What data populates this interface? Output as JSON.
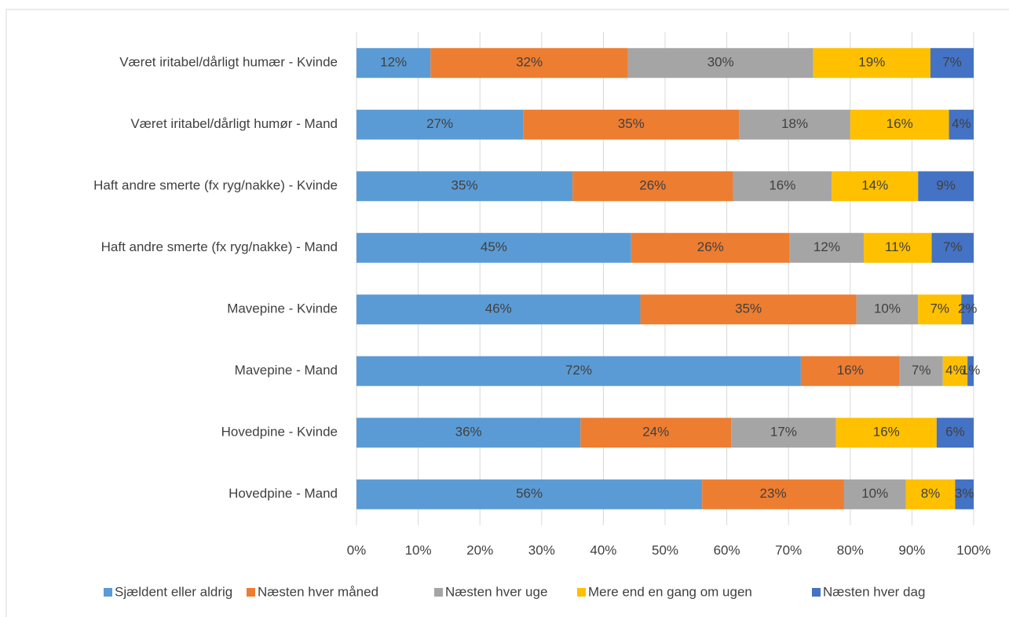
{
  "chart_data": {
    "type": "stacked-bar-horizontal",
    "categories": [
      "Været iritabel/dårligt humær - Kvinde",
      "Været iritabel/dårligt humør - Mand",
      "Haft andre smerte (fx ryg/nakke) - Kvinde",
      "Haft andre smerte (fx ryg/nakke) - Mand",
      "Mavepine - Kvinde",
      "Mavepine - Mand",
      "Hovedpine - Kvinde",
      "Hovedpine - Mand"
    ],
    "series": [
      {
        "name": "Sjældent eller aldrig",
        "color": "#5b9bd5",
        "values": [
          12,
          27,
          35,
          44.5,
          46,
          72,
          36.3,
          56
        ],
        "value_labels": [
          "12%",
          "27%",
          "35%",
          "45%",
          "46%",
          "72%",
          "36%",
          "56%"
        ]
      },
      {
        "name": "Næsten hver måned",
        "color": "#ed7d31",
        "values": [
          32,
          35,
          26,
          25.7,
          35,
          16,
          24.4,
          23
        ],
        "value_labels": [
          "32%",
          "35%",
          "26%",
          "26%",
          "35%",
          "16%",
          "24%",
          "23%"
        ]
      },
      {
        "name": "Næsten hver uge",
        "color": "#a5a5a5",
        "values": [
          30,
          18,
          16,
          12,
          10,
          7,
          17,
          10
        ],
        "value_labels": [
          "30%",
          "18%",
          "16%",
          "12%",
          "10%",
          "7%",
          "17%",
          "10%"
        ]
      },
      {
        "name": "Mere end en gang om ugen",
        "color": "#ffc000",
        "values": [
          19,
          16,
          14,
          11,
          7,
          4,
          16.3,
          8
        ],
        "value_labels": [
          "19%",
          "16%",
          "14%",
          "11%",
          "7%",
          "4%",
          "16%",
          "8%"
        ]
      },
      {
        "name": "Næsten hver dag",
        "color": "#4472c4",
        "values": [
          7,
          4,
          9,
          6.8,
          2,
          1,
          6,
          3
        ],
        "value_labels": [
          "7%",
          "4%",
          "9%",
          "7%",
          "2%",
          "1%",
          "6%",
          "3%"
        ]
      }
    ],
    "xlim": [
      0,
      100
    ],
    "xticks": [
      {
        "value": 0,
        "label": "0%"
      },
      {
        "value": 10,
        "label": "10%"
      },
      {
        "value": 20,
        "label": "20%"
      },
      {
        "value": 30,
        "label": "30%"
      },
      {
        "value": 40,
        "label": "40%"
      },
      {
        "value": 50,
        "label": "50%"
      },
      {
        "value": 60,
        "label": "60%"
      },
      {
        "value": 70,
        "label": "70%"
      },
      {
        "value": 80,
        "label": "80%"
      },
      {
        "value": 90,
        "label": "90%"
      },
      {
        "value": 100,
        "label": "100%"
      }
    ],
    "grid": true,
    "legend": "bottom"
  }
}
